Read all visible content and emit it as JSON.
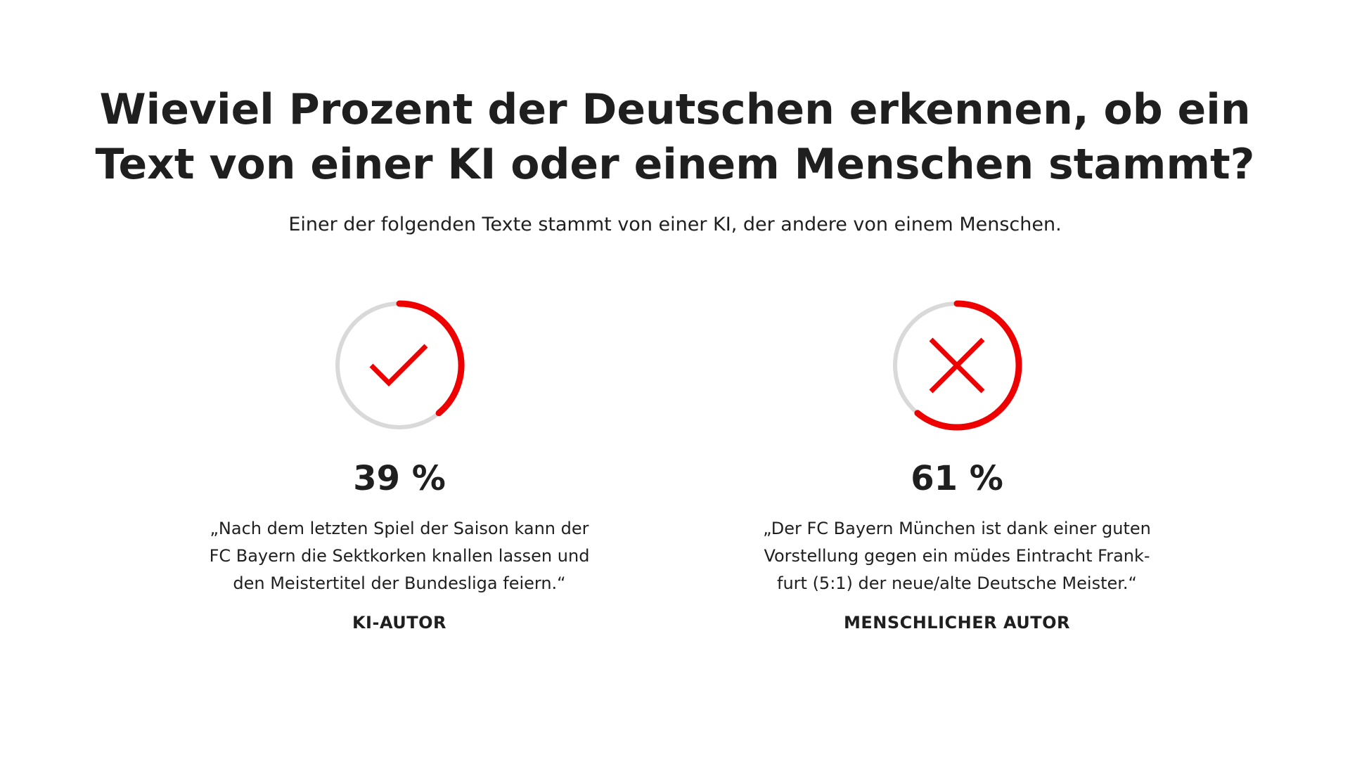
{
  "title_lines": [
    "Wieviel Prozent der Deutschen erkennen, ob ein",
    "Text von einer KI oder einem Menschen stammt?"
  ],
  "subtitle": "Einer der folgenden Texte stammt von einer KI, der andere von einem Menschen.",
  "colors": {
    "accent": "#ee0000",
    "track": "#d9d9d9",
    "text": "#1f1f1f"
  },
  "chart_data": {
    "type": "donut",
    "title": "Wieviel Prozent der Deutschen erkennen, ob ein Text von einer KI oder einem Menschen stammt?",
    "unit": "%",
    "items": [
      {
        "percent_label": "39 %",
        "value": 39,
        "icon": "check-icon",
        "quote_lines": [
          "„Nach dem letzten Spiel der Saison kann der",
          "FC Bayern die Sektkorken knallen lassen und",
          "den Meistertitel der Bundesliga feiern.“"
        ],
        "author": "KI-AUTOR"
      },
      {
        "percent_label": "61 %",
        "value": 61,
        "icon": "cross-icon",
        "quote_lines": [
          "„Der FC Bayern München ist dank einer guten",
          "Vorstellung gegen ein müdes Eintracht Frank-",
          "furt (5:1) der neue/alte Deutsche Meister.“"
        ],
        "author": "MENSCHLICHER AUTOR"
      }
    ]
  }
}
